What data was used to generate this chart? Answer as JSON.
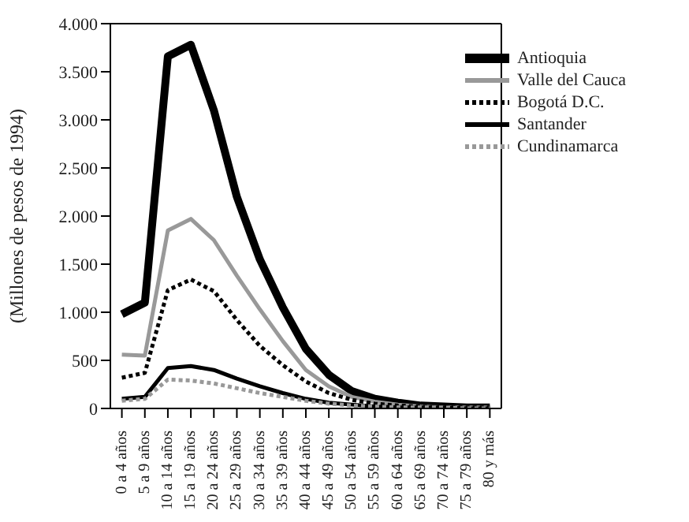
{
  "chart_data": {
    "type": "line",
    "ylabel": "(Millones de pesos de 1994)",
    "categories": [
      "0 a 4 años",
      "5 a 9 años",
      "10 a 14 años",
      "15 a 19 años",
      "20 a 24 años",
      "25 a 29 años",
      "30 a 34 años",
      "35 a 39 años",
      "40 a 44 años",
      "45 a 49 años",
      "50 a 54 años",
      "55 a 59 años",
      "60 a 64 años",
      "65 a 69 años",
      "70 a 74 años",
      "75 a 79 años",
      "80 y más"
    ],
    "series": [
      {
        "name": "Antioquia",
        "color": "#000000",
        "line_style": "solid",
        "values": [
          980,
          1100,
          3660,
          3780,
          3100,
          2200,
          1550,
          1050,
          620,
          350,
          180,
          100,
          60,
          30,
          20,
          10,
          10
        ]
      },
      {
        "name": "Valle del Cauca",
        "color": "#999999",
        "line_style": "solid",
        "values": [
          560,
          550,
          1850,
          1970,
          1750,
          1380,
          1030,
          700,
          400,
          230,
          120,
          70,
          40,
          20,
          10,
          10,
          10
        ]
      },
      {
        "name": "Bogotá D.C.",
        "color": "#000000",
        "line_style": "dotted",
        "values": [
          320,
          370,
          1230,
          1340,
          1220,
          920,
          650,
          450,
          280,
          160,
          90,
          50,
          30,
          20,
          10,
          10,
          10
        ]
      },
      {
        "name": "Santander",
        "color": "#000000",
        "line_style": "solid",
        "values": [
          100,
          120,
          420,
          440,
          400,
          310,
          230,
          160,
          100,
          60,
          40,
          20,
          10,
          10,
          10,
          0,
          0
        ]
      },
      {
        "name": "Cundinamarca",
        "color": "#999999",
        "line_style": "dotted",
        "values": [
          80,
          100,
          300,
          290,
          260,
          210,
          160,
          120,
          80,
          50,
          30,
          20,
          10,
          10,
          10,
          0,
          0
        ]
      }
    ],
    "ylim": [
      0,
      4000
    ],
    "yticks": [
      0,
      500,
      {
        "value": 1000,
        "label": "1.000"
      },
      {
        "value": 1500,
        "label": "1.500"
      },
      {
        "value": 2000,
        "label": "2.000"
      },
      {
        "value": 2500,
        "label": "2.500"
      },
      {
        "value": 3000,
        "label": "3.000"
      },
      {
        "value": 3500,
        "label": "3.500"
      },
      {
        "value": 4000,
        "label": "4.000"
      }
    ],
    "grid": false,
    "legend": "top right",
    "marker": "none"
  }
}
